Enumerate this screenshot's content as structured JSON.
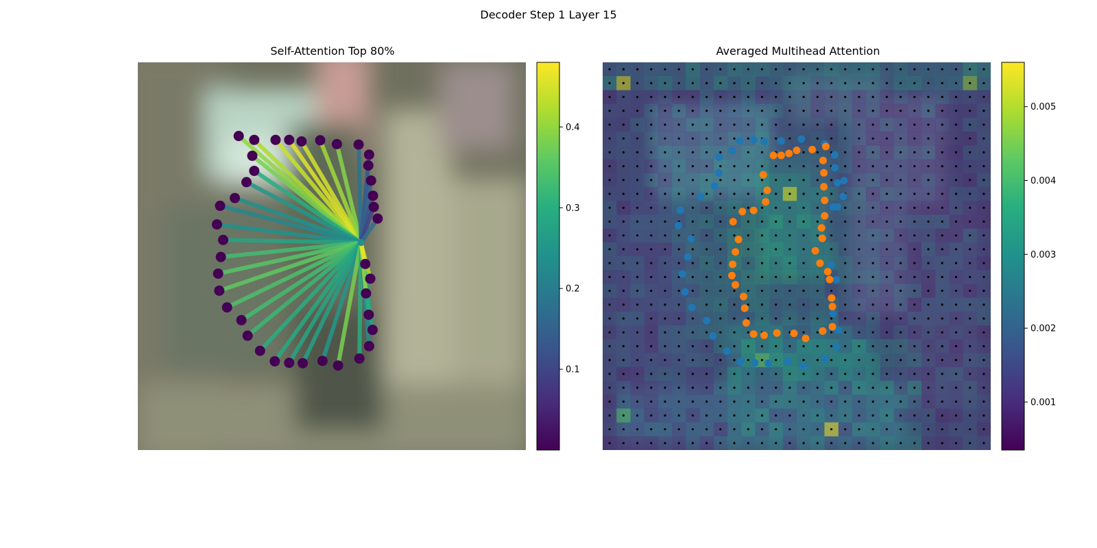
{
  "figure": {
    "suptitle": "Decoder Step 1 Layer 15"
  },
  "chart_data": [
    {
      "type": "scatter",
      "title": "Self-Attention Top 80%",
      "xlabel": "",
      "ylabel": "",
      "axes_visible": false,
      "background": "blurred photo",
      "query_point": [
        0.575,
        0.465
      ],
      "points": [
        [
          0.26,
          0.19
        ],
        [
          0.3,
          0.2
        ],
        [
          0.355,
          0.2
        ],
        [
          0.39,
          0.2
        ],
        [
          0.422,
          0.204
        ],
        [
          0.47,
          0.201
        ],
        [
          0.513,
          0.211
        ],
        [
          0.569,
          0.212
        ],
        [
          0.596,
          0.238
        ],
        [
          0.594,
          0.266
        ],
        [
          0.601,
          0.305
        ],
        [
          0.606,
          0.344
        ],
        [
          0.608,
          0.373
        ],
        [
          0.618,
          0.403
        ],
        [
          0.295,
          0.241
        ],
        [
          0.3,
          0.28
        ],
        [
          0.28,
          0.309
        ],
        [
          0.25,
          0.35
        ],
        [
          0.212,
          0.37
        ],
        [
          0.204,
          0.418
        ],
        [
          0.22,
          0.458
        ],
        [
          0.214,
          0.502
        ],
        [
          0.207,
          0.545
        ],
        [
          0.21,
          0.589
        ],
        [
          0.23,
          0.632
        ],
        [
          0.267,
          0.665
        ],
        [
          0.283,
          0.705
        ],
        [
          0.315,
          0.744
        ],
        [
          0.353,
          0.771
        ],
        [
          0.39,
          0.775
        ],
        [
          0.425,
          0.776
        ],
        [
          0.476,
          0.77
        ],
        [
          0.516,
          0.782
        ],
        [
          0.571,
          0.764
        ],
        [
          0.596,
          0.732
        ],
        [
          0.605,
          0.69
        ],
        [
          0.595,
          0.651
        ],
        [
          0.588,
          0.596
        ],
        [
          0.599,
          0.558
        ],
        [
          0.586,
          0.52
        ]
      ],
      "weights": [
        0.4,
        0.42,
        0.44,
        0.46,
        0.45,
        0.41,
        0.39,
        0.18,
        0.16,
        0.14,
        0.15,
        0.12,
        0.1,
        0.17,
        0.38,
        0.3,
        0.25,
        0.24,
        0.22,
        0.24,
        0.28,
        0.33,
        0.35,
        0.36,
        0.34,
        0.33,
        0.32,
        0.3,
        0.29,
        0.28,
        0.27,
        0.25,
        0.38,
        0.3,
        0.22,
        0.28,
        0.3,
        0.4,
        0.42,
        0.47
      ],
      "colorbar": {
        "min": 0.0,
        "max": 0.48,
        "ticks": [
          0.1,
          0.2,
          0.3,
          0.4
        ]
      }
    },
    {
      "type": "heatmap",
      "title": "Averaged Multihead Attention",
      "xlabel": "",
      "ylabel": "",
      "axes_visible": false,
      "grid_size": 28,
      "colorbar": {
        "min": 0.00035,
        "max": 0.0056,
        "ticks": [
          0.001,
          0.002,
          0.003,
          0.004,
          0.005
        ]
      },
      "hotspots": [
        {
          "row": 1,
          "col": 1,
          "value": 0.0052
        },
        {
          "row": 1,
          "col": 26,
          "value": 0.0046
        },
        {
          "row": 0,
          "col": 26,
          "value": 0.0032
        },
        {
          "row": 9,
          "col": 13,
          "value": 0.0053
        },
        {
          "row": 26,
          "col": 16,
          "value": 0.0054
        },
        {
          "row": 21,
          "col": 11,
          "value": 0.0042
        },
        {
          "row": 25,
          "col": 1,
          "value": 0.004
        }
      ],
      "series": [
        {
          "name": "",
          "color": "#1f77b4",
          "points": [
            [
              0.353,
              0.202
            ],
            [
              0.389,
              0.2
            ],
            [
              0.416,
              0.204
            ],
            [
              0.46,
              0.203
            ],
            [
              0.512,
              0.198
            ],
            [
              0.572,
              0.21
            ],
            [
              0.3,
              0.244
            ],
            [
              0.334,
              0.228
            ],
            [
              0.598,
              0.239
            ],
            [
              0.598,
              0.272
            ],
            [
              0.605,
              0.311
            ],
            [
              0.62,
              0.346
            ],
            [
              0.299,
              0.285
            ],
            [
              0.288,
              0.319
            ],
            [
              0.253,
              0.346
            ],
            [
              0.2,
              0.381
            ],
            [
              0.195,
              0.421
            ],
            [
              0.228,
              0.455
            ],
            [
              0.219,
              0.502
            ],
            [
              0.205,
              0.546
            ],
            [
              0.212,
              0.592
            ],
            [
              0.23,
              0.632
            ],
            [
              0.268,
              0.666
            ],
            [
              0.284,
              0.706
            ],
            [
              0.32,
              0.745
            ],
            [
              0.355,
              0.772
            ],
            [
              0.392,
              0.775
            ],
            [
              0.427,
              0.776
            ],
            [
              0.477,
              0.771
            ],
            [
              0.517,
              0.784
            ],
            [
              0.573,
              0.765
            ],
            [
              0.602,
              0.733
            ],
            [
              0.607,
              0.691
            ],
            [
              0.594,
              0.648
            ],
            [
              0.602,
              0.561
            ],
            [
              0.589,
              0.522
            ],
            [
              0.605,
              0.373
            ],
            [
              0.594,
              0.373
            ],
            [
              0.622,
              0.305
            ]
          ]
        },
        {
          "name": "",
          "color": "#ff7f0e",
          "points": [
            [
              0.46,
              0.24
            ],
            [
              0.48,
              0.235
            ],
            [
              0.5,
              0.227
            ],
            [
              0.54,
              0.225
            ],
            [
              0.568,
              0.253
            ],
            [
              0.575,
              0.217
            ],
            [
              0.44,
              0.24
            ],
            [
              0.414,
              0.29
            ],
            [
              0.424,
              0.33
            ],
            [
              0.42,
              0.36
            ],
            [
              0.36,
              0.385
            ],
            [
              0.389,
              0.382
            ],
            [
              0.336,
              0.411
            ],
            [
              0.35,
              0.457
            ],
            [
              0.342,
              0.489
            ],
            [
              0.335,
              0.521
            ],
            [
              0.333,
              0.55
            ],
            [
              0.342,
              0.574
            ],
            [
              0.363,
              0.604
            ],
            [
              0.366,
              0.634
            ],
            [
              0.37,
              0.672
            ],
            [
              0.389,
              0.701
            ],
            [
              0.416,
              0.704
            ],
            [
              0.449,
              0.698
            ],
            [
              0.493,
              0.699
            ],
            [
              0.523,
              0.712
            ],
            [
              0.567,
              0.693
            ],
            [
              0.592,
              0.682
            ],
            [
              0.592,
              0.63
            ],
            [
              0.59,
              0.608
            ],
            [
              0.585,
              0.56
            ],
            [
              0.58,
              0.54
            ],
            [
              0.56,
              0.518
            ],
            [
              0.548,
              0.486
            ],
            [
              0.566,
              0.454
            ],
            [
              0.564,
              0.427
            ],
            [
              0.572,
              0.396
            ],
            [
              0.572,
              0.356
            ],
            [
              0.57,
              0.321
            ],
            [
              0.57,
              0.285
            ]
          ]
        }
      ]
    }
  ]
}
